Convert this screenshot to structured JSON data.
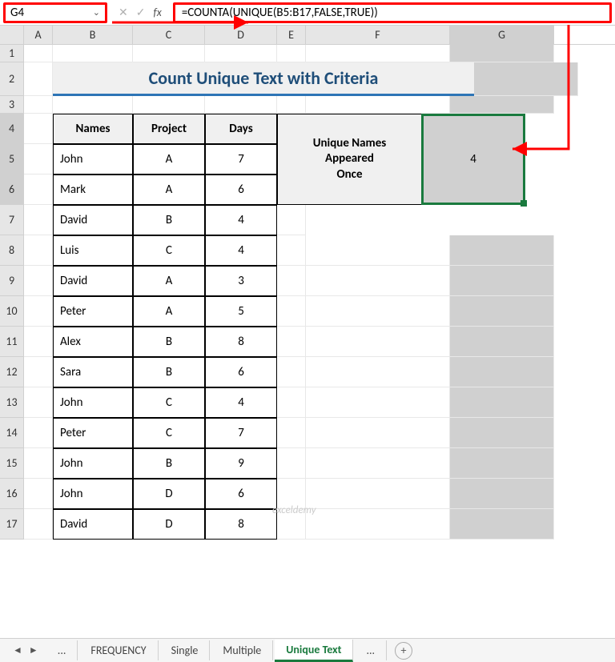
{
  "nameBox": "G4",
  "formula": "=COUNTA(UNIQUE(B5:B17,FALSE,TRUE))",
  "columns": [
    "A",
    "B",
    "C",
    "D",
    "E",
    "F",
    "G"
  ],
  "rows": [
    "1",
    "2",
    "3",
    "4",
    "5",
    "6",
    "7",
    "8",
    "9",
    "10",
    "11",
    "12",
    "13",
    "14",
    "15",
    "16",
    "17"
  ],
  "title": "Count Unique Text with Criteria",
  "headers": {
    "names": "Names",
    "project": "Project",
    "days": "Days"
  },
  "data": [
    {
      "name": "John",
      "project": "A",
      "days": "7"
    },
    {
      "name": "Mark",
      "project": "A",
      "days": "6"
    },
    {
      "name": "David",
      "project": "B",
      "days": "4"
    },
    {
      "name": "Luis",
      "project": "C",
      "days": "4"
    },
    {
      "name": "David",
      "project": "A",
      "days": "3"
    },
    {
      "name": "Peter",
      "project": "A",
      "days": "5"
    },
    {
      "name": "Alex",
      "project": "B",
      "days": "8"
    },
    {
      "name": "Sara",
      "project": "B",
      "days": "6"
    },
    {
      "name": "John",
      "project": "C",
      "days": "4"
    },
    {
      "name": "Peter",
      "project": "C",
      "days": "7"
    },
    {
      "name": "John",
      "project": "B",
      "days": "9"
    },
    {
      "name": "John",
      "project": "D",
      "days": "6"
    },
    {
      "name": "David",
      "project": "D",
      "days": "8"
    }
  ],
  "resultLabel": "Unique Names Appeared Once",
  "resultValue": "4",
  "tabs": {
    "ellipsis": "...",
    "t1": "FREQUENCY",
    "t2": "Single",
    "t3": "Multiple",
    "active": "Unique Text"
  },
  "watermark": "exceldemy",
  "colors": {
    "highlight": "#ff0000",
    "selection": "#1a7a3e",
    "titleColor": "#1f4e79",
    "titleUnderline": "#2e75b6"
  }
}
